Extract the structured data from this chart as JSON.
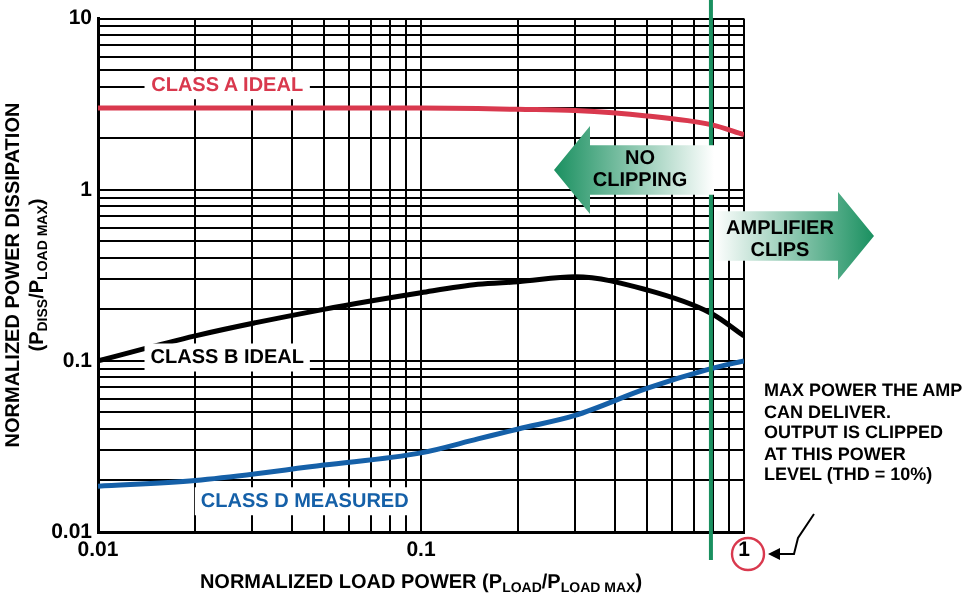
{
  "chart_data": {
    "type": "line",
    "xlabel": "NORMALIZED LOAD POWER (P$_{LOAD}$/P$_{LOAD MAX}$)",
    "ylabel": "NORMALIZED POWER DISSIPATION (P$_{DISS}$/P$_{LOAD MAX}$)",
    "log": "xy",
    "xlim": [
      0.01,
      1
    ],
    "ylim": [
      0.01,
      10
    ],
    "xticks": [
      0.01,
      {
        "value": 0.02,
        "label": null
      },
      {
        "value": 0.03,
        "label": null
      },
      {
        "value": 0.04,
        "label": null
      },
      {
        "value": 0.05,
        "label": null
      },
      {
        "value": 0.06,
        "label": null
      },
      {
        "value": 0.07,
        "label": null
      },
      {
        "value": 0.08,
        "label": null
      },
      {
        "value": 0.09,
        "label": null
      },
      0.1,
      {
        "value": 0.2,
        "label": null
      },
      {
        "value": 0.3,
        "label": null
      },
      {
        "value": 0.4,
        "label": null
      },
      {
        "value": 0.5,
        "label": null
      },
      {
        "value": 0.6,
        "label": null
      },
      {
        "value": 0.7,
        "label": null
      },
      {
        "value": 0.8,
        "label": null
      },
      {
        "value": 0.9,
        "label": null
      },
      1
    ],
    "yticks": [
      0.01,
      {
        "value": 0.02,
        "label": null
      },
      {
        "value": 0.03,
        "label": null
      },
      {
        "value": 0.04,
        "label": null
      },
      {
        "value": 0.05,
        "label": null
      },
      {
        "value": 0.06,
        "label": null
      },
      {
        "value": 0.07,
        "label": null
      },
      {
        "value": 0.08,
        "label": null
      },
      {
        "value": 0.09,
        "label": null
      },
      0.1,
      {
        "value": 0.2,
        "label": null
      },
      {
        "value": 0.3,
        "label": null
      },
      {
        "value": 0.4,
        "label": null
      },
      {
        "value": 0.5,
        "label": null
      },
      {
        "value": 0.6,
        "label": null
      },
      {
        "value": 0.7,
        "label": null
      },
      {
        "value": 0.8,
        "label": null
      },
      {
        "value": 0.9,
        "label": null
      },
      1,
      {
        "value": 2,
        "label": null
      },
      {
        "value": 3,
        "label": null
      },
      {
        "value": 4,
        "label": null
      },
      {
        "value": 5,
        "label": null
      },
      {
        "value": 6,
        "label": null
      },
      {
        "value": 7,
        "label": null
      },
      {
        "value": 8,
        "label": null
      },
      {
        "value": 9,
        "label": null
      },
      10
    ],
    "x": [
      0.01,
      0.02,
      0.05,
      0.1,
      0.15,
      0.2,
      0.3,
      0.5,
      0.79,
      1
    ],
    "series": [
      {
        "name": "CLASS A IDEAL",
        "color": "#d9394e",
        "values": [
          3.0,
          3.0,
          3.0,
          3.0,
          2.98,
          2.95,
          2.9,
          2.7,
          2.4,
          2.1
        ]
      },
      {
        "name": "CLASS B IDEAL",
        "color": "#000000",
        "values": [
          0.1,
          0.14,
          0.2,
          0.25,
          0.28,
          0.29,
          0.31,
          0.26,
          0.19,
          0.14
        ]
      },
      {
        "name": "CLASS D MEASURED",
        "color": "#1560a8",
        "values": [
          0.0185,
          0.02,
          0.0246,
          0.029,
          0.035,
          0.04,
          0.048,
          0.069,
          0.09,
          0.1
        ]
      }
    ],
    "ref_lines": [
      {
        "axis": "x",
        "value": 0.79,
        "color": "#1a9060"
      }
    ],
    "annotations": [
      "NO CLIPPING",
      "AMPLIFIER CLIPS",
      "MAX POWER THE AMP CAN DELIVER. OUTPUT IS CLIPPED AT THIS POWER LEVEL (THD = 10%)"
    ],
    "grid": true,
    "legend": false,
    "marker": "none",
    "line_style": "solid"
  }
}
